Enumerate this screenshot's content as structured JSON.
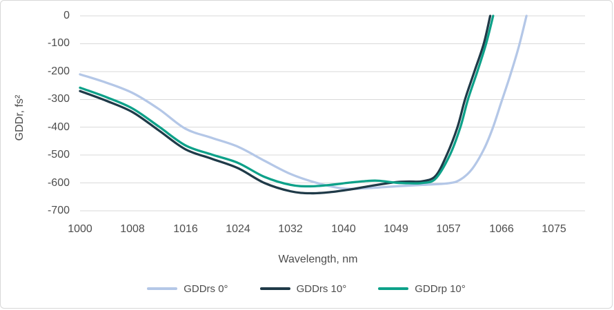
{
  "chart": {
    "y_axis_title": "GDDr, fs²",
    "x_axis_title": "Wavelength, nm",
    "colors": {
      "gridline": "#d9d9d9",
      "axis_text": "#4d4d4d",
      "frame_border": "#d7d7d7",
      "background": "#ffffff"
    }
  },
  "chart_data": {
    "type": "line",
    "title": "",
    "xlabel": "Wavelength, nm",
    "ylabel": "GDDr, fs²",
    "ylim": [
      -700,
      0
    ],
    "y_tick_step": 100,
    "y_tick_labels": [
      "0",
      "-100",
      "-200",
      "-300",
      "-400",
      "-500",
      "-600",
      "-700"
    ],
    "x_tick_values": [
      1000,
      1008,
      1016,
      1024,
      1032,
      1040,
      1049,
      1057,
      1066,
      1075
    ],
    "x_tick_labels": [
      "1000",
      "1008",
      "1016",
      "1024",
      "1032",
      "1040",
      "1049",
      "1057",
      "1066",
      "1075"
    ],
    "grid": true,
    "legend_position": "bottom",
    "series": [
      {
        "name": "GDDrs 0°",
        "color": "#b4c7e7",
        "points": [
          [
            1000,
            -210
          ],
          [
            1004,
            -240
          ],
          [
            1008,
            -277
          ],
          [
            1012,
            -335
          ],
          [
            1016,
            -405
          ],
          [
            1020,
            -438
          ],
          [
            1024,
            -470
          ],
          [
            1028,
            -520
          ],
          [
            1032,
            -568
          ],
          [
            1036,
            -600
          ],
          [
            1040,
            -620
          ],
          [
            1044,
            -619
          ],
          [
            1049,
            -612
          ],
          [
            1053,
            -607
          ],
          [
            1057,
            -601
          ],
          [
            1059,
            -588
          ],
          [
            1061,
            -550
          ],
          [
            1063,
            -480
          ],
          [
            1064.5,
            -405
          ],
          [
            1066,
            -310
          ],
          [
            1067.5,
            -215
          ],
          [
            1069,
            -110
          ],
          [
            1070.3,
            0
          ]
        ]
      },
      {
        "name": "GDDrs 10°",
        "color": "#1f3a48",
        "points": [
          [
            1000,
            -270
          ],
          [
            1004,
            -305
          ],
          [
            1008,
            -346
          ],
          [
            1012,
            -412
          ],
          [
            1016,
            -479
          ],
          [
            1020,
            -513
          ],
          [
            1024,
            -547
          ],
          [
            1028,
            -600
          ],
          [
            1032,
            -630
          ],
          [
            1035,
            -637
          ],
          [
            1038,
            -633
          ],
          [
            1041,
            -624
          ],
          [
            1044,
            -613
          ],
          [
            1047,
            -603
          ],
          [
            1049,
            -597
          ],
          [
            1051,
            -595
          ],
          [
            1053,
            -594
          ],
          [
            1055,
            -575
          ],
          [
            1056.7,
            -500
          ],
          [
            1058.5,
            -400
          ],
          [
            1059.8,
            -300
          ],
          [
            1061.4,
            -200
          ],
          [
            1063,
            -100
          ],
          [
            1064.1,
            0
          ]
        ]
      },
      {
        "name": "GDDrp 10°",
        "color": "#0da189",
        "points": [
          [
            1000,
            -258
          ],
          [
            1004,
            -292
          ],
          [
            1008,
            -333
          ],
          [
            1012,
            -398
          ],
          [
            1016,
            -465
          ],
          [
            1020,
            -498
          ],
          [
            1024,
            -528
          ],
          [
            1028,
            -578
          ],
          [
            1032,
            -607
          ],
          [
            1035,
            -612
          ],
          [
            1038,
            -607
          ],
          [
            1041,
            -599
          ],
          [
            1044,
            -593
          ],
          [
            1046,
            -592
          ],
          [
            1049,
            -599
          ],
          [
            1051,
            -601
          ],
          [
            1053,
            -600
          ],
          [
            1055,
            -585
          ],
          [
            1057.2,
            -500
          ],
          [
            1059,
            -400
          ],
          [
            1060.3,
            -300
          ],
          [
            1061.9,
            -200
          ],
          [
            1063.4,
            -100
          ],
          [
            1064.6,
            0
          ]
        ]
      }
    ]
  }
}
